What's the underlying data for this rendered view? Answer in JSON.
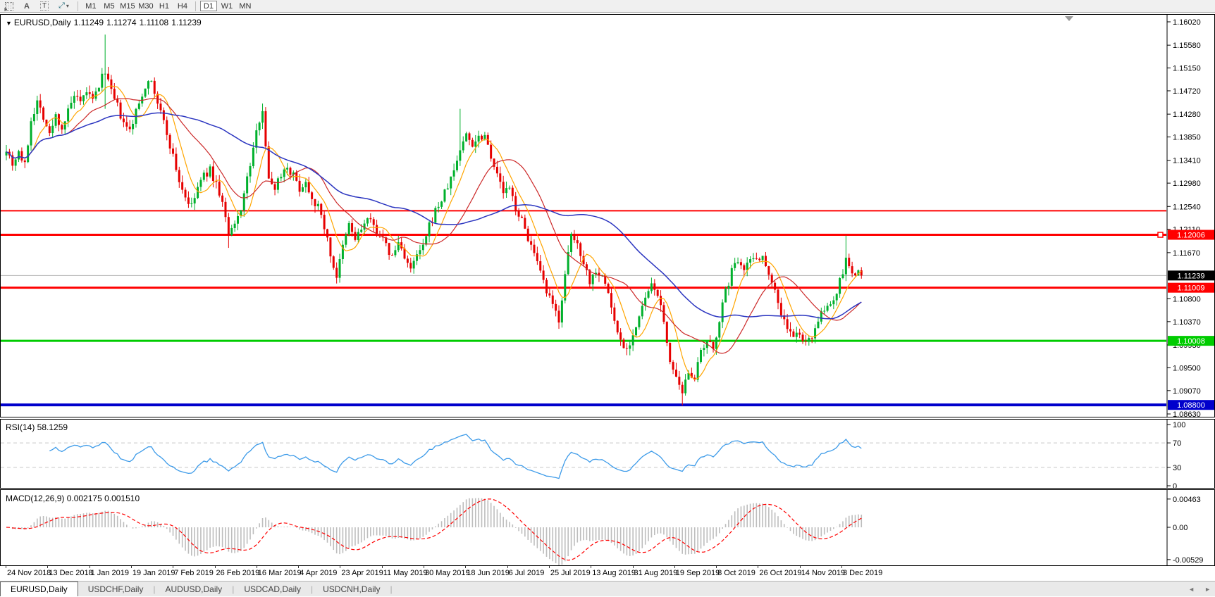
{
  "toolbar": {
    "tools": [
      {
        "name": "grid-f-icon",
        "label": "F"
      },
      {
        "name": "text-label-icon",
        "glyph": "A"
      },
      {
        "name": "text-box-icon",
        "glyph": "T"
      },
      {
        "name": "arrows-tool-icon",
        "glyph": "⤢",
        "caret": "▾"
      }
    ],
    "timeframes": [
      "M1",
      "M5",
      "M15",
      "M30",
      "H1",
      "H4",
      "D1",
      "W1",
      "MN"
    ],
    "active_timeframe": "D1"
  },
  "header": {
    "collapse_caret": "▼",
    "symbol": "EURUSD,Daily",
    "open": "1.11249",
    "high": "1.11274",
    "low": "1.11108",
    "close": "1.11239"
  },
  "price_axis": {
    "ticks": [
      "1.16020",
      "1.15580",
      "1.15150",
      "1.14720",
      "1.14280",
      "1.13850",
      "1.13410",
      "1.12980",
      "1.12540",
      "1.12110",
      "1.11670",
      "1.10800",
      "1.10370",
      "1.09930",
      "1.09500",
      "1.09070",
      "1.08630"
    ],
    "price_labels": [
      {
        "text": "1.12006",
        "value": 1.12006,
        "bg": "#ff0000",
        "fg": "#ffffff"
      },
      {
        "text": "1.11239",
        "value": 1.11239,
        "bg": "#000000",
        "fg": "#ffffff"
      },
      {
        "text": "1.11009",
        "value": 1.11009,
        "bg": "#ff0000",
        "fg": "#ffffff"
      },
      {
        "text": "1.10008",
        "value": 1.10008,
        "bg": "#00cc00",
        "fg": "#ffffff"
      },
      {
        "text": "1.08800",
        "value": 1.088,
        "bg": "#0000cc",
        "fg": "#ffffff"
      }
    ]
  },
  "hlines": [
    {
      "name": "resistance-line-upper",
      "price": 1.1246,
      "color": "#ff0000",
      "w": 2,
      "marker": false
    },
    {
      "name": "resistance-line-1.12006",
      "price": 1.12006,
      "color": "#ff0000",
      "w": 3,
      "marker": true
    },
    {
      "name": "current-price-line",
      "price": 1.11239,
      "color": "#b0b0b0",
      "w": 1,
      "marker": false
    },
    {
      "name": "support-line-1.11009",
      "price": 1.11009,
      "color": "#ff0000",
      "w": 3,
      "marker": false
    },
    {
      "name": "support-line-1.10008",
      "price": 1.10008,
      "color": "#00cc00",
      "w": 3,
      "marker": false
    },
    {
      "name": "support-line-1.08800",
      "price": 1.088,
      "color": "#0000cc",
      "w": 4,
      "marker": false
    }
  ],
  "rsi": {
    "label": "RSI(14) 58.1259",
    "ticks": [
      {
        "text": "100",
        "v": 100
      },
      {
        "text": "70",
        "v": 70
      },
      {
        "text": "30",
        "v": 30
      },
      {
        "text": "0",
        "v": 0
      }
    ],
    "dashed_levels": [
      70,
      30
    ]
  },
  "macd": {
    "label": "MACD(12,26,9) 0.002175 0.001510",
    "ticks": [
      {
        "text": "0.00463",
        "v": 0.00463
      },
      {
        "text": "0.00",
        "v": 0
      },
      {
        "text": "-0.00529",
        "v": -0.00529
      }
    ]
  },
  "date_axis": {
    "dates": [
      "24 Nov 2018",
      "13 Dec 2018",
      "1 Jan 2019",
      "19 Jan 2019",
      "7 Feb 2019",
      "26 Feb 2019",
      "16 Mar 2019",
      "4 Apr 2019",
      "23 Apr 2019",
      "11 May 2019",
      "30 May 2019",
      "18 Jun 2019",
      "6 Jul 2019",
      "25 Jul 2019",
      "13 Aug 2019",
      "31 Aug 2019",
      "19 Sep 2019",
      "8 Oct 2019",
      "26 Oct 2019",
      "14 Nov 2019",
      "3 Dec 2019"
    ]
  },
  "tabs": {
    "items": [
      {
        "label": "EURUSD,Daily",
        "active": true
      },
      {
        "label": "USDCHF,Daily",
        "active": false
      },
      {
        "label": "AUDUSD,Daily",
        "active": false
      },
      {
        "label": "USDCAD,Daily",
        "active": false
      },
      {
        "label": "USDCNH,Daily",
        "active": false
      }
    ],
    "nav_left": "◄",
    "nav_right": "►"
  },
  "colors": {
    "up": "#00b02c",
    "down": "#e60000",
    "ma_fast": "#ffa500",
    "ma_mid": "#cc2929",
    "ma_slow": "#2b35c0",
    "rsi_line": "#3d9be9",
    "macd_bar": "#bdbdbd",
    "macd_signal": "#ff0000",
    "level_dash": "#c8c8c8"
  },
  "chart_data": {
    "type": "candlestick",
    "symbol": "EURUSD",
    "timeframe": "Daily",
    "bar_count": 278,
    "last_close": 1.11239,
    "price_range_visible": [
      1.0863,
      1.1602
    ],
    "noise": 0.0016,
    "wick": 0.0013,
    "close_anchors": [
      [
        0,
        1.1365
      ],
      [
        2,
        1.1335
      ],
      [
        4,
        1.1358
      ],
      [
        6,
        1.133
      ],
      [
        8,
        1.1418
      ],
      [
        10,
        1.1452
      ],
      [
        12,
        1.1425
      ],
      [
        14,
        1.1388
      ],
      [
        16,
        1.1425
      ],
      [
        18,
        1.1402
      ],
      [
        20,
        1.1432
      ],
      [
        22,
        1.1462
      ],
      [
        24,
        1.1445
      ],
      [
        26,
        1.1472
      ],
      [
        28,
        1.1452
      ],
      [
        30,
        1.1482
      ],
      [
        32,
        1.1512
      ],
      [
        34,
        1.1468
      ],
      [
        36,
        1.1442
      ],
      [
        38,
        1.1408
      ],
      [
        40,
        1.1396
      ],
      [
        42,
        1.1432
      ],
      [
        44,
        1.1465
      ],
      [
        46,
        1.1498
      ],
      [
        48,
        1.1468
      ],
      [
        50,
        1.1432
      ],
      [
        52,
        1.1392
      ],
      [
        54,
        1.1348
      ],
      [
        56,
        1.1302
      ],
      [
        58,
        1.1272
      ],
      [
        60,
        1.1252
      ],
      [
        62,
        1.129
      ],
      [
        64,
        1.1312
      ],
      [
        66,
        1.1322
      ],
      [
        68,
        1.1296
      ],
      [
        70,
        1.1262
      ],
      [
        72,
        1.1198
      ],
      [
        74,
        1.1218
      ],
      [
        76,
        1.1252
      ],
      [
        78,
        1.1305
      ],
      [
        80,
        1.1362
      ],
      [
        82,
        1.142
      ],
      [
        83,
        1.144
      ],
      [
        85,
        1.1302
      ],
      [
        87,
        1.1292
      ],
      [
        89,
        1.1316
      ],
      [
        91,
        1.133
      ],
      [
        93,
        1.1312
      ],
      [
        95,
        1.1288
      ],
      [
        97,
        1.13
      ],
      [
        99,
        1.1272
      ],
      [
        101,
        1.1252
      ],
      [
        103,
        1.1218
      ],
      [
        105,
        1.1162
      ],
      [
        107,
        1.1122
      ],
      [
        109,
        1.1176
      ],
      [
        111,
        1.122
      ],
      [
        113,
        1.1192
      ],
      [
        115,
        1.1212
      ],
      [
        117,
        1.123
      ],
      [
        119,
        1.1216
      ],
      [
        121,
        1.1202
      ],
      [
        123,
        1.1178
      ],
      [
        125,
        1.1158
      ],
      [
        127,
        1.1186
      ],
      [
        129,
        1.1162
      ],
      [
        131,
        1.1132
      ],
      [
        133,
        1.1162
      ],
      [
        135,
        1.1176
      ],
      [
        137,
        1.1216
      ],
      [
        139,
        1.1246
      ],
      [
        141,
        1.1266
      ],
      [
        143,
        1.1292
      ],
      [
        145,
        1.1322
      ],
      [
        147,
        1.1362
      ],
      [
        149,
        1.139
      ],
      [
        151,
        1.1372
      ],
      [
        153,
        1.1386
      ],
      [
        155,
        1.139
      ],
      [
        157,
        1.1352
      ],
      [
        159,
        1.1312
      ],
      [
        161,
        1.1282
      ],
      [
        163,
        1.1286
      ],
      [
        165,
        1.1252
      ],
      [
        167,
        1.1226
      ],
      [
        169,
        1.1196
      ],
      [
        171,
        1.1162
      ],
      [
        173,
        1.1126
      ],
      [
        175,
        1.1092
      ],
      [
        177,
        1.1066
      ],
      [
        179,
        1.1042
      ],
      [
        181,
        1.1122
      ],
      [
        183,
        1.12
      ],
      [
        185,
        1.1182
      ],
      [
        187,
        1.1152
      ],
      [
        189,
        1.1112
      ],
      [
        191,
        1.1136
      ],
      [
        193,
        1.1122
      ],
      [
        195,
        1.1092
      ],
      [
        197,
        1.1036
      ],
      [
        199,
        1.1002
      ],
      [
        201,
        1.0986
      ],
      [
        203,
        1.1012
      ],
      [
        205,
        1.1042
      ],
      [
        207,
        1.1082
      ],
      [
        209,
        1.1102
      ],
      [
        211,
        1.1092
      ],
      [
        213,
        1.1032
      ],
      [
        215,
        1.0966
      ],
      [
        217,
        1.0926
      ],
      [
        219,
        1.0896
      ],
      [
        221,
        1.0946
      ],
      [
        223,
        1.0932
      ],
      [
        225,
        1.0976
      ],
      [
        227,
        1.0996
      ],
      [
        229,
        1.0986
      ],
      [
        231,
        1.1042
      ],
      [
        233,
        1.1092
      ],
      [
        235,
        1.1132
      ],
      [
        237,
        1.1156
      ],
      [
        239,
        1.1142
      ],
      [
        241,
        1.1152
      ],
      [
        243,
        1.1162
      ],
      [
        245,
        1.1156
      ],
      [
        247,
        1.1132
      ],
      [
        249,
        1.1096
      ],
      [
        251,
        1.1052
      ],
      [
        253,
        1.1026
      ],
      [
        255,
        1.1006
      ],
      [
        257,
        1.1016
      ],
      [
        259,
        1.0992
      ],
      [
        261,
        1.1012
      ],
      [
        263,
        1.1042
      ],
      [
        265,
        1.1056
      ],
      [
        267,
        1.1072
      ],
      [
        269,
        1.1092
      ],
      [
        271,
        1.1132
      ],
      [
        272,
        1.1152
      ],
      [
        273,
        1.1142
      ],
      [
        274,
        1.1128
      ],
      [
        275,
        1.1118
      ],
      [
        276,
        1.1136
      ],
      [
        277,
        1.11239
      ]
    ],
    "spikes": [
      {
        "i": 32,
        "h": 1.1578,
        "l": 1.1438
      },
      {
        "i": 72,
        "l": 1.1176
      },
      {
        "i": 83,
        "h": 1.1448
      },
      {
        "i": 107,
        "l": 1.111
      },
      {
        "i": 147,
        "h": 1.1438
      },
      {
        "i": 179,
        "l": 1.1026
      },
      {
        "i": 219,
        "l": 1.0879
      },
      {
        "i": 272,
        "h": 1.1199
      }
    ],
    "indicators": [
      {
        "name": "SMA",
        "period": 8,
        "color": "#ffa500"
      },
      {
        "name": "SMA",
        "period": 21,
        "color": "#cc2929"
      },
      {
        "name": "SMA",
        "period": 55,
        "color": "#2b35c0"
      },
      {
        "name": "RSI",
        "period": 14,
        "value": 58.1259
      },
      {
        "name": "MACD",
        "fast": 12,
        "slow": 26,
        "signal": 9,
        "values": [
          0.002175,
          0.00151
        ]
      }
    ]
  }
}
